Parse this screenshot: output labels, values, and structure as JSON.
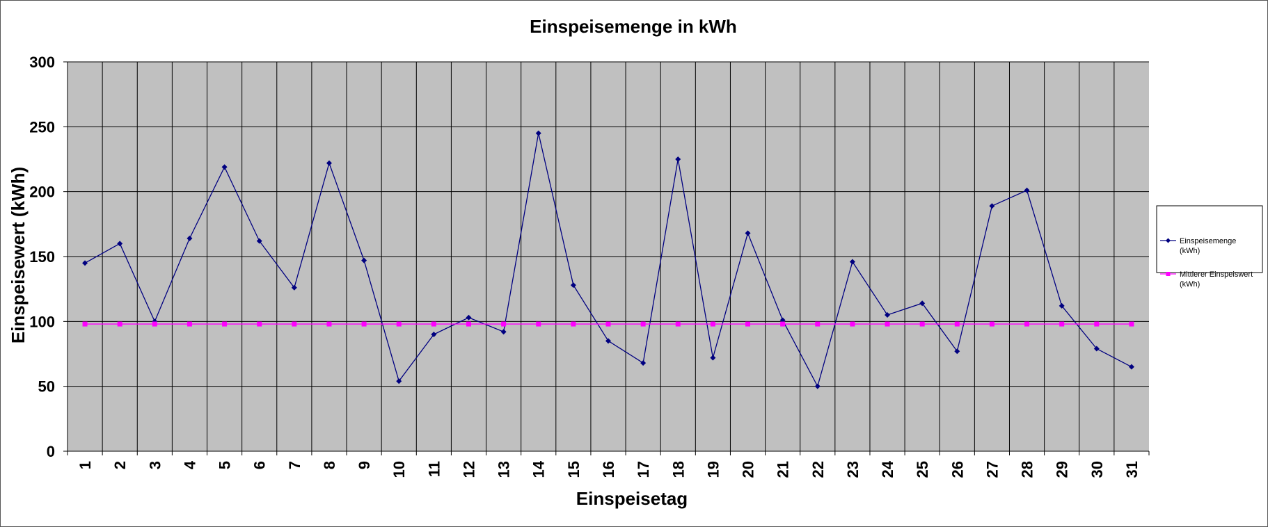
{
  "chart_data": {
    "type": "line",
    "title": "Einspeisemenge in kWh",
    "xlabel": "Einspeisetag",
    "ylabel": "Einspeisewert  (kWh)",
    "ylim": [
      0,
      300
    ],
    "yticks": [
      0,
      50,
      100,
      150,
      200,
      250,
      300
    ],
    "grid": true,
    "legend_position": "right",
    "categories": [
      "1",
      "2",
      "3",
      "4",
      "5",
      "6",
      "7",
      "8",
      "9",
      "10",
      "11",
      "12",
      "13",
      "14",
      "15",
      "16",
      "17",
      "18",
      "19",
      "20",
      "21",
      "22",
      "23",
      "24",
      "25",
      "26",
      "27",
      "28",
      "29",
      "30",
      "31"
    ],
    "series": [
      {
        "name_lines": [
          "Einspeisemenge",
          "(kWh)"
        ],
        "color": "#000080",
        "marker": "diamond",
        "values": [
          145,
          160,
          100,
          164,
          219,
          162,
          126,
          222,
          147,
          54,
          90,
          103,
          92,
          245,
          128,
          85,
          68,
          225,
          72,
          168,
          101,
          50,
          146,
          105,
          114,
          77,
          189,
          201,
          112,
          79,
          65
        ]
      },
      {
        "name_lines": [
          "Mittlerer Einspeiswert",
          "(kWh)"
        ],
        "color": "#ff00ff",
        "marker": "square",
        "values": [
          98,
          98,
          98,
          98,
          98,
          98,
          98,
          98,
          98,
          98,
          98,
          98,
          98,
          98,
          98,
          98,
          98,
          98,
          98,
          98,
          98,
          98,
          98,
          98,
          98,
          98,
          98,
          98,
          98,
          98,
          98
        ]
      }
    ],
    "plot_background": "#c0c0c0"
  }
}
